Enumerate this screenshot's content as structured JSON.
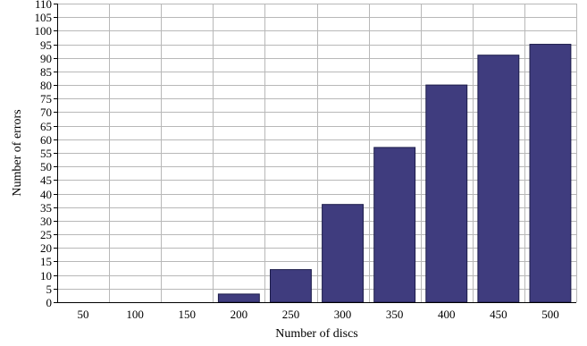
{
  "chart_data": {
    "type": "bar",
    "title": "",
    "xlabel": "Number of discs",
    "ylabel": "Number of errors",
    "categories": [
      "50",
      "100",
      "150",
      "200",
      "250",
      "300",
      "350",
      "400",
      "450",
      "500"
    ],
    "values": [
      0,
      0,
      0,
      3,
      12,
      36,
      57,
      80,
      91,
      95
    ],
    "ylim": [
      0,
      110
    ],
    "yticks": [
      0,
      5,
      10,
      15,
      20,
      25,
      30,
      35,
      40,
      45,
      50,
      55,
      60,
      65,
      70,
      75,
      80,
      85,
      90,
      95,
      100,
      105,
      110
    ],
    "grid": true,
    "bar_color": "#3f3c7e",
    "legend": "none"
  }
}
